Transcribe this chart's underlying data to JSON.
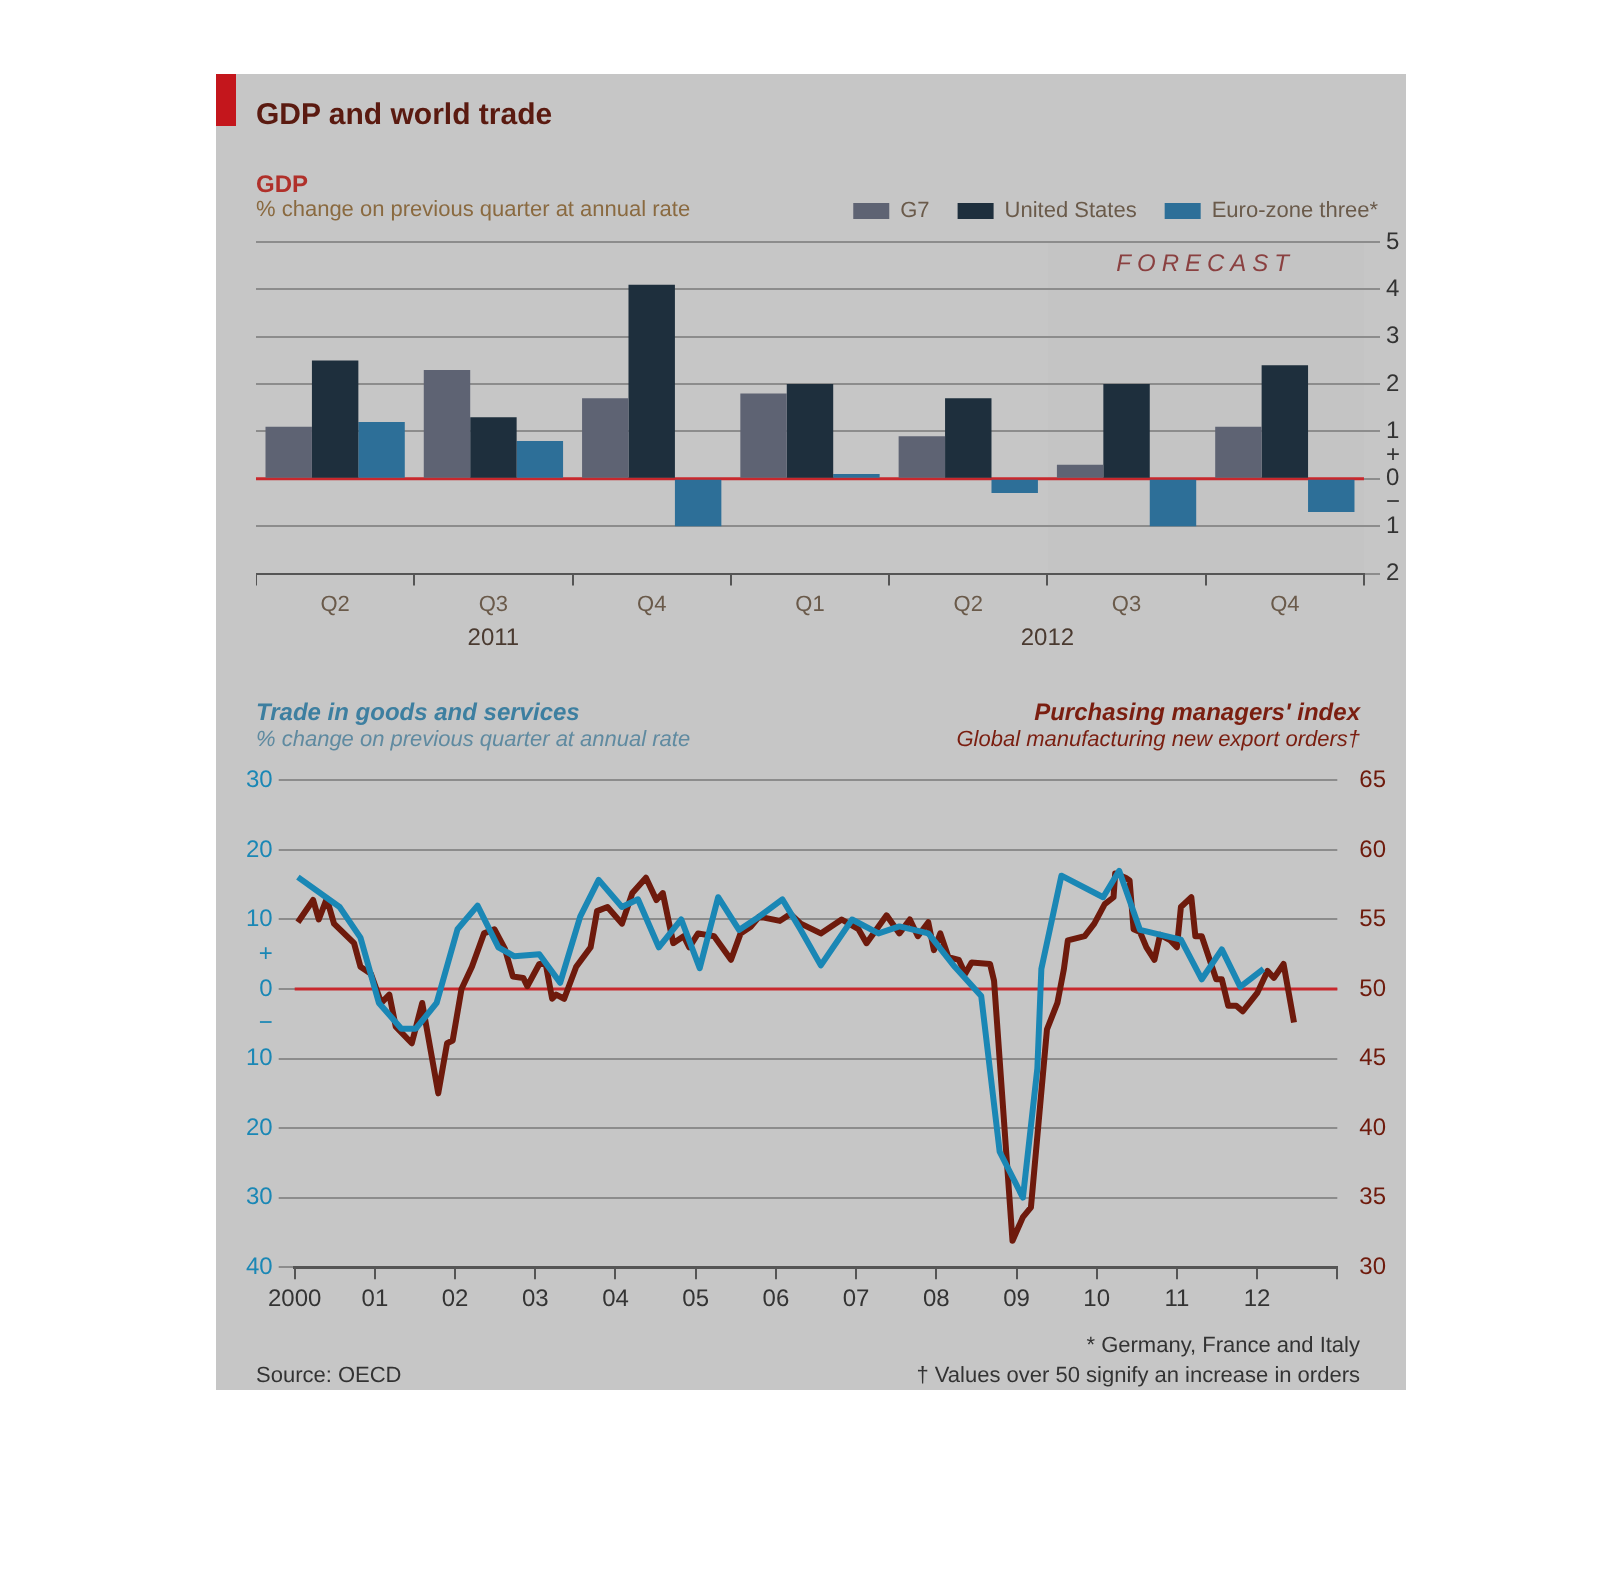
{
  "chart_data": [
    {
      "type": "bar",
      "title": "GDP and world trade",
      "ylabel": "GDP",
      "subtitle": "% change on previous quarter at annual rate",
      "categories": [
        "Q2",
        "Q3",
        "Q4",
        "Q1",
        "Q2",
        "Q3",
        "Q4"
      ],
      "series": [
        {
          "name": "G7",
          "color": "#5e6373",
          "values": [
            1.1,
            2.3,
            1.7,
            1.8,
            0.9,
            0.3,
            1.1
          ]
        },
        {
          "name": "United States",
          "color": "#1e2f3d",
          "values": [
            2.5,
            1.3,
            4.1,
            2.0,
            1.7,
            2.0,
            2.4
          ]
        },
        {
          "name": "Euro-zone three*",
          "color": "#2d6f98",
          "values": [
            1.2,
            0.8,
            -1.0,
            0.1,
            -0.3,
            -1.0,
            -0.7
          ]
        }
      ],
      "ylim": [
        -2,
        5
      ],
      "yticks": [
        5,
        4,
        3,
        2,
        1,
        {
          "value": 0.5,
          "label": "+"
        },
        0,
        {
          "value": -0.5,
          "label": "−"
        },
        {
          "value": -1,
          "label": "1"
        },
        {
          "value": -2,
          "label": "2"
        }
      ],
      "grid": "y",
      "legend": "top right",
      "ref_lines": [
        {
          "axis": "y",
          "value": 0,
          "color": "#c8282d"
        }
      ],
      "annotations": [
        "2011",
        "2012",
        "FORECAST"
      ]
    },
    {
      "type": "line",
      "title": "Trade in goods and services",
      "subtitle": "% change on previous quarter at annual rate",
      "y2label": "Purchasing managers' index",
      "annotations": [
        "Global manufacturing new export orders†",
        "Source: OECD",
        "* Germany, France and Italy",
        "† Values over 50 signify an increase in orders"
      ],
      "xlim": [
        2000,
        2013
      ],
      "xticks": [
        2000,
        {
          "value": 2001,
          "label": "01"
        },
        {
          "value": 2002,
          "label": "02"
        },
        {
          "value": 2003,
          "label": "03"
        },
        {
          "value": 2004,
          "label": "04"
        },
        {
          "value": 2005,
          "label": "05"
        },
        {
          "value": 2006,
          "label": "06"
        },
        {
          "value": 2007,
          "label": "07"
        },
        {
          "value": 2008,
          "label": "08"
        },
        {
          "value": 2009,
          "label": "09"
        },
        {
          "value": 2010,
          "label": "10"
        },
        {
          "value": 2011,
          "label": "11"
        },
        {
          "value": 2012,
          "label": "12"
        },
        {
          "value": 2013,
          "label": null
        }
      ],
      "ylim": [
        -40,
        30
      ],
      "yticks": [
        30,
        20,
        10,
        {
          "value": 5,
          "label": "+"
        },
        0,
        {
          "value": -5,
          "label": "−"
        },
        {
          "value": -10,
          "label": "10"
        },
        {
          "value": -20,
          "label": "20"
        },
        {
          "value": -30,
          "label": "30"
        },
        {
          "value": -40,
          "label": "40"
        }
      ],
      "y2lim": [
        30,
        65
      ],
      "y2ticks": [
        30,
        35,
        40,
        45,
        50,
        55,
        60,
        65
      ],
      "grid": "y",
      "legend": false,
      "ref_lines": [
        {
          "axis": "y",
          "value": 0,
          "color": "#c8282d"
        }
      ],
      "series": [
        {
          "color": "#1a87b5",
          "x": [
            2000.04,
            2000.56,
            2000.82,
            2001.05,
            2001.33,
            2001.51,
            2001.77,
            2002.03,
            2002.28,
            2002.54,
            2002.74,
            2003.05,
            2003.31,
            2003.56,
            2003.79,
            2004.08,
            2004.28,
            2004.54,
            2004.82,
            2005.05,
            2005.28,
            2005.54,
            2005.79,
            2006.08,
            2006.31,
            2006.56,
            2006.95,
            2007.28,
            2007.54,
            2007.9,
            2008.23,
            2008.56,
            2008.79,
            2009.08,
            2009.26,
            2009.31,
            2009.56,
            2010.08,
            2010.28,
            2010.54,
            2011.05,
            2011.31,
            2011.56,
            2011.79,
            2012.08
          ],
          "values": [
            16.1,
            11.8,
            7.4,
            -2,
            -5.7,
            -5.7,
            -2,
            8.6,
            12,
            6,
            4.7,
            5,
            0.9,
            10.4,
            15.7,
            11.8,
            12.9,
            6,
            10,
            3,
            13.2,
            8.5,
            10.4,
            12.9,
            8.5,
            3.4,
            10,
            8,
            9,
            8,
            3.2,
            -1,
            -23.4,
            -30,
            -11.4,
            2.9,
            16.3,
            13.2,
            17,
            8.5,
            7.1,
            1.4,
            5.7,
            0.3,
            2.9
          ]
        },
        {
          "color": "#6e1a0c",
          "axis": "y2",
          "x": [
            2000.04,
            2000.23,
            2000.3,
            2000.4,
            2000.49,
            2000.74,
            2000.82,
            2000.95,
            2001.08,
            2001.18,
            2001.26,
            2001.46,
            2001.59,
            2001.79,
            2001.9,
            2001.97,
            2002.08,
            2002.21,
            2002.36,
            2002.49,
            2002.62,
            2002.72,
            2002.85,
            2002.9,
            2003.05,
            2003.13,
            2003.21,
            2003.26,
            2003.36,
            2003.51,
            2003.69,
            2003.77,
            2003.9,
            2004.08,
            2004.21,
            2004.38,
            2004.51,
            2004.59,
            2004.72,
            2004.85,
            2004.92,
            2005.03,
            2005.23,
            2005.44,
            2005.56,
            2005.69,
            2005.79,
            2006.05,
            2006.18,
            2006.31,
            2006.56,
            2006.82,
            2007.03,
            2007.13,
            2007.28,
            2007.38,
            2007.54,
            2007.67,
            2007.77,
            2007.9,
            2007.97,
            2008.05,
            2008.15,
            2008.28,
            2008.36,
            2008.44,
            2008.67,
            2008.72,
            2008.95,
            2009.08,
            2009.18,
            2009.38,
            2009.51,
            2009.59,
            2009.64,
            2009.85,
            2009.97,
            2010.1,
            2010.21,
            2010.23,
            2010.36,
            2010.41,
            2010.46,
            2010.54,
            2010.62,
            2010.72,
            2010.79,
            2010.92,
            2011.0,
            2011.05,
            2011.18,
            2011.23,
            2011.31,
            2011.49,
            2011.56,
            2011.64,
            2011.74,
            2011.82,
            2012.0,
            2012.13,
            2012.21,
            2012.33,
            2012.46
          ],
          "values": [
            54.8,
            56.4,
            55.0,
            56.5,
            54.7,
            53.3,
            51.6,
            51.1,
            49.0,
            49.6,
            47.3,
            46.1,
            49.0,
            42.5,
            46.1,
            46.3,
            50.0,
            51.6,
            54.0,
            54.3,
            52.9,
            50.9,
            50.8,
            50.2,
            51.8,
            51.8,
            49.3,
            49.6,
            49.3,
            51.6,
            53.0,
            55.6,
            55.9,
            54.7,
            56.9,
            58.0,
            56.4,
            56.9,
            53.3,
            53.8,
            53.0,
            54.0,
            53.8,
            52.1,
            54.0,
            54.5,
            55.2,
            54.9,
            55.4,
            54.7,
            54.0,
            55.0,
            54.3,
            53.3,
            54.5,
            55.3,
            54.0,
            55.0,
            53.8,
            54.8,
            52.8,
            54.0,
            52.3,
            52.1,
            51.1,
            51.9,
            51.8,
            50.6,
            31.9,
            33.6,
            34.3,
            47.1,
            49.0,
            51.4,
            53.5,
            53.8,
            54.7,
            56.1,
            56.6,
            58.3,
            58.0,
            57.8,
            54.3,
            54.1,
            53.0,
            52.1,
            53.9,
            53.5,
            53.0,
            55.9,
            56.6,
            53.8,
            53.8,
            50.7,
            50.7,
            48.8,
            48.8,
            48.4,
            49.7,
            51.3,
            50.8,
            51.8,
            47.6
          ]
        }
      ]
    }
  ]
}
